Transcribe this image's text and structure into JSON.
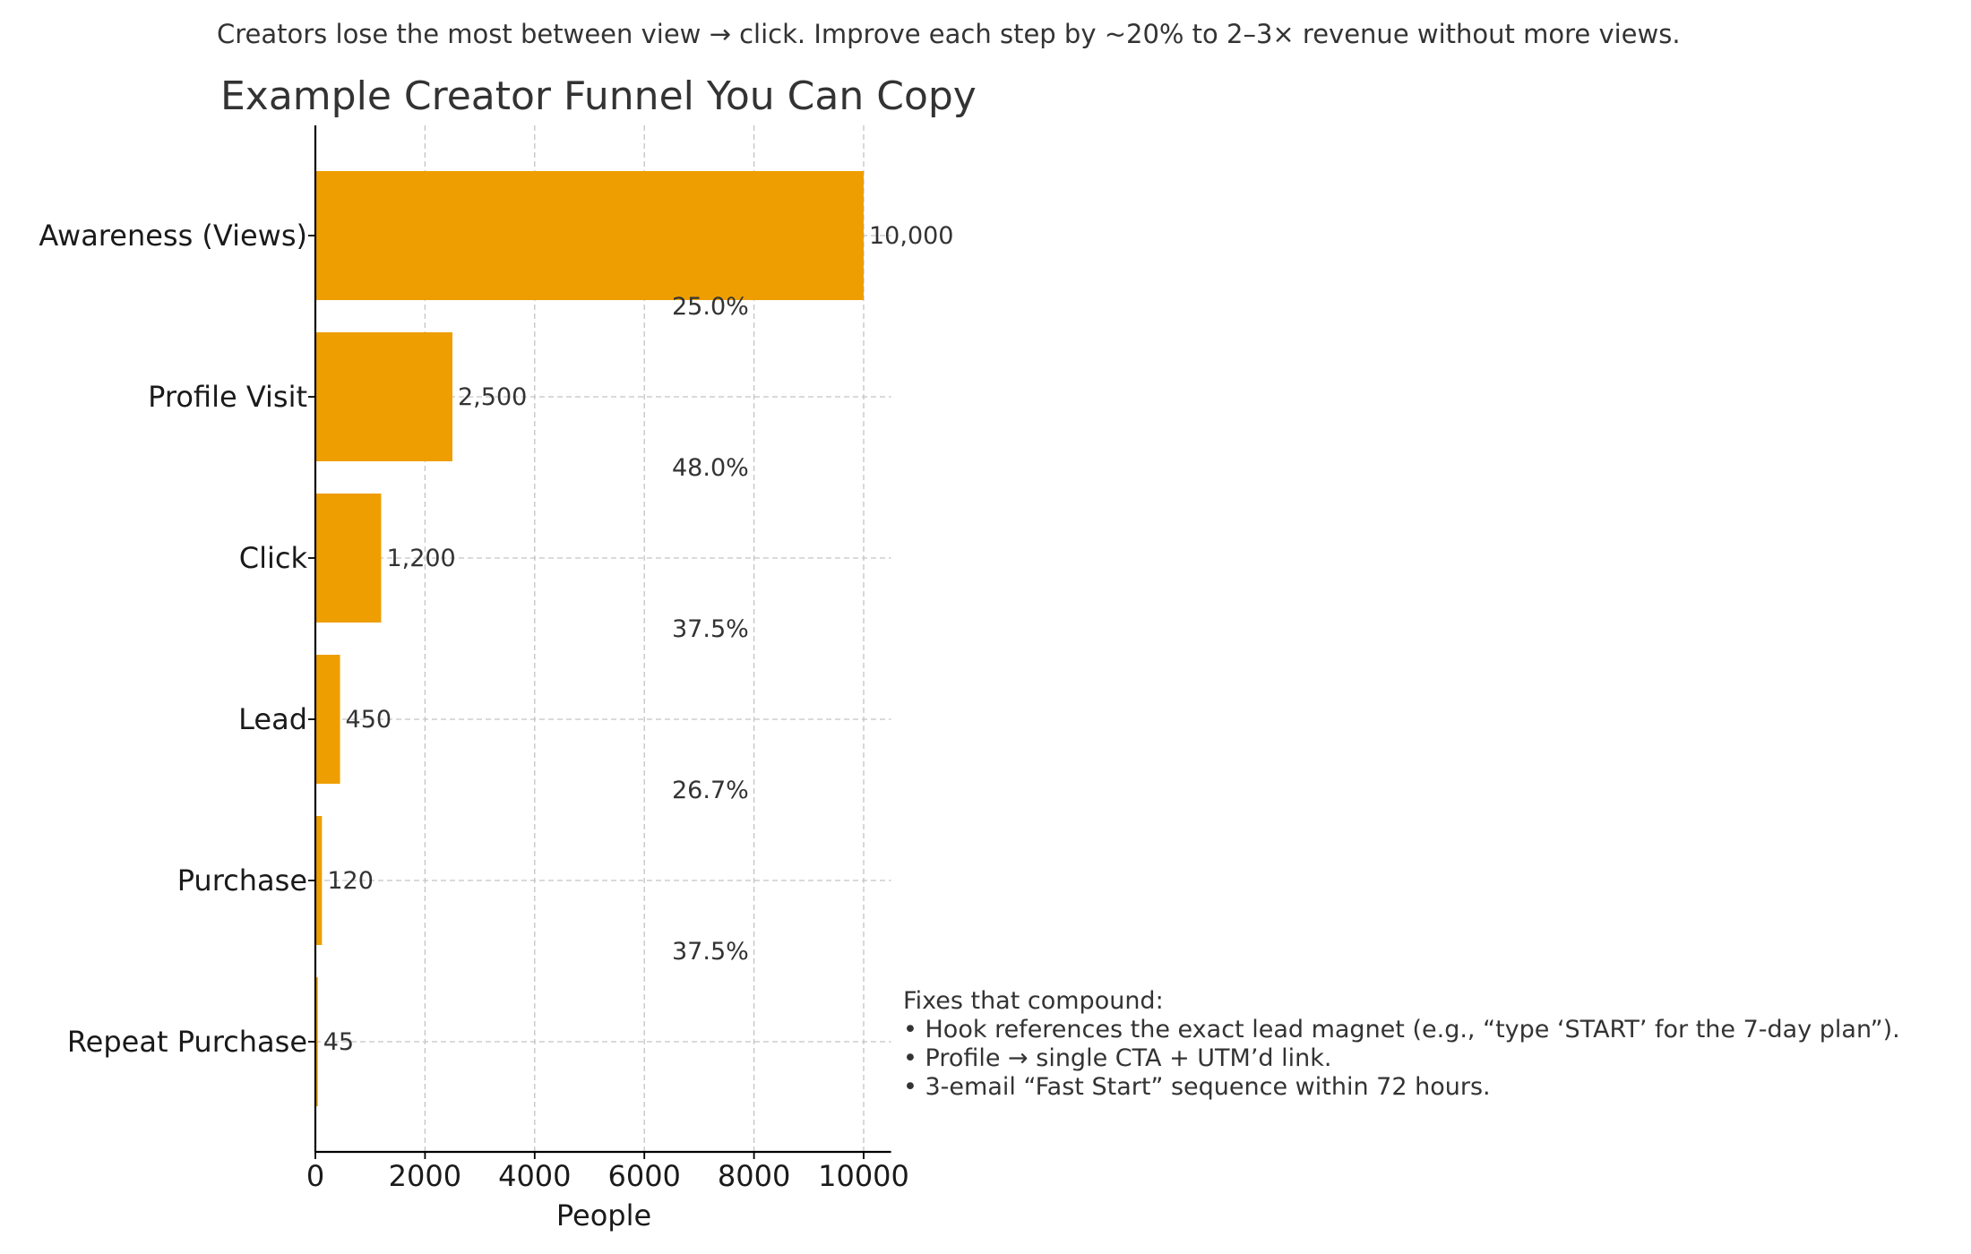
{
  "subtitle": "Creators lose the most between view → click. Improve each step by ~20% to 2–3× revenue without more views.",
  "notes": {
    "title": "Fixes that compound:",
    "items": [
      "• Hook references the exact lead magnet (e.g., “type ‘START’ for the 7-day plan”).",
      "• Profile → single CTA + UTM’d link.",
      "• 3-email “Fast Start” sequence within 72 hours."
    ]
  },
  "colors": {
    "bar": "#EE9E00",
    "text": "#333333",
    "grid": "#c4c4c4",
    "axis": "#000000"
  },
  "chart_data": {
    "type": "bar",
    "orientation": "horizontal",
    "title": "Example Creator Funnel You Can Copy",
    "xlabel": "People",
    "ylabel": "",
    "categories": [
      "Awareness (Views)",
      "Profile Visit",
      "Click",
      "Lead",
      "Purchase",
      "Repeat Purchase"
    ],
    "values": [
      10000,
      2500,
      1200,
      450,
      120,
      45
    ],
    "value_labels": [
      "10,000",
      "2,500",
      "1,200",
      "450",
      "120",
      "45"
    ],
    "conversion_labels": [
      "25.0%",
      "48.0%",
      "37.5%",
      "26.7%",
      "37.5%"
    ],
    "xlim": [
      0,
      10500
    ],
    "xticks": [
      0,
      2000,
      4000,
      6000,
      8000,
      10000
    ],
    "xtick_labels": [
      "0",
      "2000",
      "4000",
      "6000",
      "8000",
      "10000"
    ],
    "grid": true
  }
}
